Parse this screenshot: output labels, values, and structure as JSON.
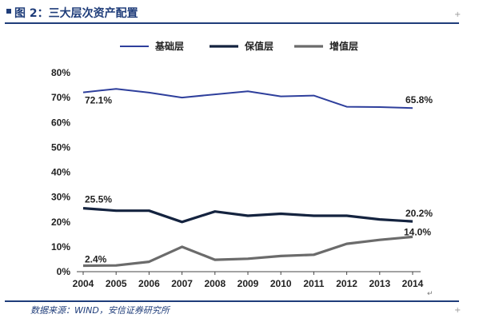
{
  "header": {
    "title": "图 2：三大层次资产配置"
  },
  "source": "数据来源：WIND，安信证券研究所",
  "colors": {
    "base": "#2e3f9c",
    "preserve": "#14233f",
    "increase": "#6b6b6b",
    "accent": "#1f3d7a"
  },
  "chart_data": {
    "type": "line",
    "title": "",
    "xlabel": "",
    "ylabel": "",
    "categories": [
      "2004",
      "2005",
      "2006",
      "2007",
      "2008",
      "2009",
      "2010",
      "2011",
      "2012",
      "2013",
      "2014"
    ],
    "ylim": [
      0,
      80
    ],
    "yticks": [
      "0%",
      "10%",
      "20%",
      "30%",
      "40%",
      "50%",
      "60%",
      "70%",
      "80%"
    ],
    "grid": false,
    "legend_position": "top",
    "series": [
      {
        "name": "基础层",
        "color_key": "base",
        "values": [
          72.1,
          73.5,
          72.0,
          70.0,
          71.3,
          72.5,
          70.5,
          70.8,
          66.3,
          66.2,
          65.8
        ]
      },
      {
        "name": "保值层",
        "color_key": "preserve",
        "values": [
          25.5,
          24.5,
          24.5,
          20.0,
          24.2,
          22.5,
          23.3,
          22.5,
          22.5,
          21.0,
          20.2
        ]
      },
      {
        "name": "增值层",
        "color_key": "increase",
        "values": [
          2.4,
          2.5,
          4.0,
          10.0,
          4.8,
          5.2,
          6.3,
          6.8,
          11.2,
          12.8,
          14.0
        ]
      }
    ],
    "annotations": [
      {
        "series": 0,
        "index": 0,
        "text": "72.1%"
      },
      {
        "series": 0,
        "index": 10,
        "text": "65.8%"
      },
      {
        "series": 1,
        "index": 0,
        "text": "25.5%"
      },
      {
        "series": 1,
        "index": 10,
        "text": "20.2%"
      },
      {
        "series": 2,
        "index": 0,
        "text": "2.4%"
      },
      {
        "series": 2,
        "index": 10,
        "text": "14.0%"
      }
    ]
  }
}
